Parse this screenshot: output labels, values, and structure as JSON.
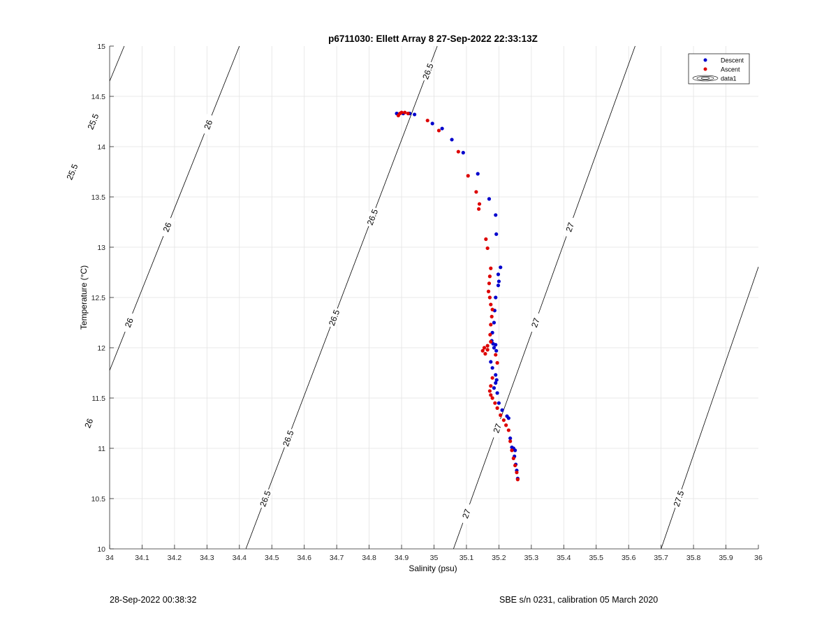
{
  "footer": {
    "left": "28-Sep-2022 00:38:32",
    "right": "SBE s/n 0231, calibration 05 March 2020"
  },
  "chart_data": {
    "type": "scatter",
    "title": "p6711030: Ellett Array 8 27-Sep-2022 22:33:13Z",
    "xlabel": "Salinity (psu)",
    "ylabel": "Temperature (°C)",
    "xlim": [
      34,
      36
    ],
    "ylim": [
      10,
      15
    ],
    "x_ticks": [
      34,
      34.1,
      34.2,
      34.3,
      34.4,
      34.5,
      34.6,
      34.7,
      34.8,
      34.9,
      35,
      35.1,
      35.2,
      35.3,
      35.4,
      35.5,
      35.6,
      35.7,
      35.8,
      35.9,
      36
    ],
    "x_tick_labels": [
      "34",
      "34.1",
      "34.2",
      "34.3",
      "34.4",
      "34.5",
      "34.6",
      "34.7",
      "34.8",
      "34.9",
      "35",
      "35.1",
      "35.2",
      "35.3",
      "35.4",
      "35.5",
      "35.6",
      "35.7",
      "35.8",
      "35.9",
      "36"
    ],
    "y_ticks": [
      10,
      10.5,
      11,
      11.5,
      12,
      12.5,
      13,
      13.5,
      14,
      14.5,
      15
    ],
    "y_tick_labels": [
      "10",
      "10.5",
      "11",
      "11.5",
      "12",
      "12.5",
      "13",
      "13.5",
      "14",
      "14.5",
      "15"
    ],
    "grid": true,
    "legend_position": "top-right",
    "legend": [
      "Descent",
      "Ascent",
      "data1"
    ],
    "colors": {
      "descent": "#0000cc",
      "ascent": "#dd0000",
      "contour": "#000000",
      "grid": "#e3e3e3"
    },
    "series": [
      {
        "name": "Descent",
        "x": [
          34.885,
          34.905,
          34.925,
          34.94,
          34.995,
          35.025,
          35.055,
          35.09,
          35.135,
          35.17,
          35.19,
          35.192,
          35.205,
          35.198,
          35.2,
          35.198,
          35.19,
          35.187,
          35.185,
          35.18,
          35.178,
          35.182,
          35.185,
          35.19,
          35.192,
          35.175,
          35.18,
          35.19,
          35.193,
          35.19,
          35.185,
          35.195,
          35.2,
          35.21,
          35.225,
          35.23,
          35.235,
          35.24,
          35.245,
          35.25,
          35.248,
          35.252,
          35.255,
          35.258
        ],
        "y": [
          14.33,
          14.33,
          14.33,
          14.32,
          14.23,
          14.18,
          14.07,
          13.94,
          13.73,
          13.48,
          13.32,
          13.13,
          12.8,
          12.73,
          12.66,
          12.62,
          12.5,
          12.37,
          12.25,
          12.15,
          12.07,
          12.04,
          12.0,
          12.03,
          11.97,
          11.86,
          11.8,
          11.73,
          11.68,
          11.65,
          11.6,
          11.55,
          11.45,
          11.38,
          11.32,
          11.3,
          11.1,
          11.01,
          11.0,
          10.98,
          10.92,
          10.84,
          10.78,
          10.7
        ],
        "marker_color": "#0000cc"
      },
      {
        "name": "Ascent",
        "x": [
          34.89,
          34.895,
          34.9,
          34.91,
          34.92,
          34.98,
          35.015,
          35.075,
          35.105,
          35.13,
          35.14,
          35.138,
          35.16,
          35.165,
          35.175,
          35.172,
          35.17,
          35.168,
          35.172,
          35.175,
          35.18,
          35.178,
          35.175,
          35.173,
          35.175,
          35.165,
          35.155,
          35.15,
          35.158,
          35.165,
          35.19,
          35.195,
          35.18,
          35.175,
          35.172,
          35.175,
          35.18,
          35.188,
          35.195,
          35.205,
          35.215,
          35.222,
          35.23,
          35.235,
          35.24,
          35.245,
          35.25,
          35.255,
          35.258
        ],
        "y": [
          14.31,
          14.33,
          14.34,
          14.34,
          14.33,
          14.26,
          14.16,
          13.95,
          13.71,
          13.55,
          13.43,
          13.38,
          13.08,
          12.99,
          12.79,
          12.71,
          12.64,
          12.56,
          12.5,
          12.43,
          12.38,
          12.31,
          12.23,
          12.13,
          12.06,
          12.02,
          12.0,
          11.97,
          11.94,
          11.98,
          11.93,
          11.85,
          11.7,
          11.62,
          11.57,
          11.53,
          11.5,
          11.45,
          11.4,
          11.33,
          11.28,
          11.23,
          11.18,
          11.07,
          10.98,
          10.9,
          10.83,
          10.76,
          10.69
        ],
        "marker_color": "#dd0000"
      }
    ],
    "contours": [
      {
        "level": "25.5",
        "labels": [
          "25.5",
          "25.5"
        ]
      },
      {
        "level": "26",
        "labels": [
          "26",
          "26",
          "26",
          "26"
        ]
      },
      {
        "level": "26.5",
        "labels": [
          "26.5",
          "26.5",
          "26.5",
          "26.5",
          "26.5"
        ]
      },
      {
        "level": "27",
        "labels": [
          "27",
          "27",
          "27",
          "27"
        ]
      },
      {
        "level": "27.5",
        "labels": [
          "27.5"
        ]
      }
    ]
  }
}
